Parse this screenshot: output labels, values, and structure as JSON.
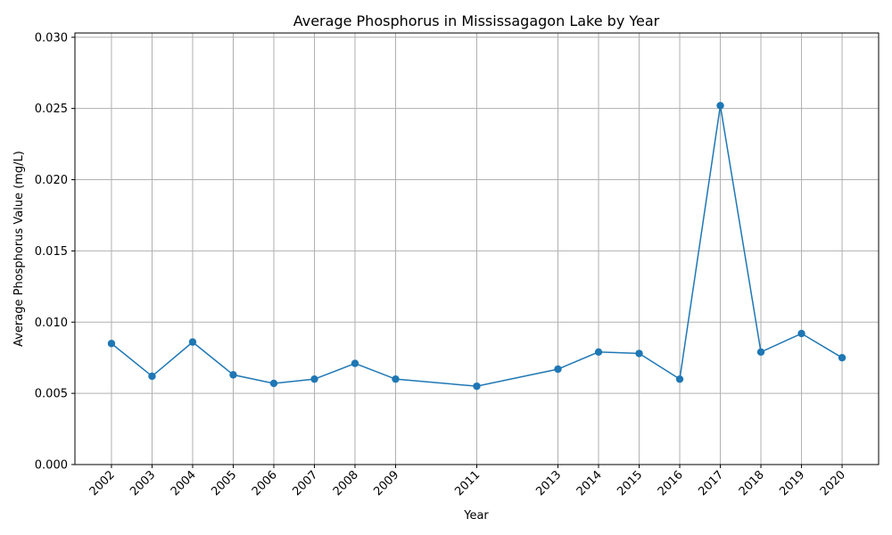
{
  "chart_data": {
    "type": "line",
    "title": "Average Phosphorus in Mississagagon Lake by Year",
    "xlabel": "Year",
    "ylabel": "Average Phosphorus Value (mg/L)",
    "x": [
      2002,
      2003,
      2004,
      2005,
      2006,
      2007,
      2008,
      2009,
      2011,
      2013,
      2014,
      2015,
      2016,
      2017,
      2018,
      2019,
      2020
    ],
    "x_tick_labels": [
      "2002",
      "2003",
      "2004",
      "2005",
      "2006",
      "2007",
      "2008",
      "2009",
      "2011",
      "2013",
      "2014",
      "2015",
      "2016",
      "2017",
      "2018",
      "2019",
      "2020"
    ],
    "series": [
      {
        "name": "Average Phosphorus",
        "values": [
          0.0085,
          0.0062,
          0.0086,
          0.0063,
          0.0057,
          0.006,
          0.0071,
          0.006,
          0.0055,
          0.0067,
          0.0079,
          0.0078,
          0.006,
          0.0252,
          0.0079,
          0.0092,
          0.0075
        ],
        "color": "#1f77b4",
        "marker": "circle"
      }
    ],
    "xlim": [
      2001.1,
      2020.9
    ],
    "ylim": [
      0.0,
      0.0303
    ],
    "y_ticks": [
      0.0,
      0.005,
      0.01,
      0.015,
      0.02,
      0.025,
      0.03
    ],
    "y_tick_labels": [
      "0.000",
      "0.005",
      "0.010",
      "0.015",
      "0.020",
      "0.025",
      "0.030"
    ],
    "grid": true
  }
}
